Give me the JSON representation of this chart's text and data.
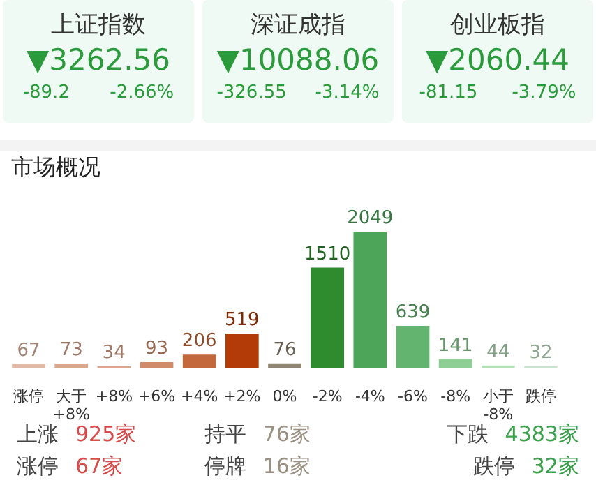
{
  "chart_data": [
    {
      "type": "other",
      "annotations": [
        "上证指数",
        "▼3262.56",
        "-89.2",
        "-2.66%",
        "深证成指",
        "▼10088.06",
        "-326.55",
        "-3.14%",
        "创业板指",
        "▼2060.44",
        "-81.15",
        "-3.79%"
      ]
    },
    {
      "type": "bar",
      "title": "市场概况",
      "categories": [
        "涨停",
        "大于 +8%",
        "+8%",
        "+6%",
        "+4%",
        "+2%",
        "0%",
        "-2%",
        "-4%",
        "-6%",
        "-8%",
        "小于 -8%",
        "跌停"
      ],
      "values": [
        67,
        73,
        34,
        93,
        206,
        519,
        76,
        1510,
        2049,
        639,
        141,
        44,
        32
      ],
      "colors": [
        "#e2b9a4",
        "#dba690",
        "#dba58c",
        "#d08c6a",
        "#c3683c",
        "#b23b08",
        "#8f8674",
        "#2e8b2e",
        "#4da55a",
        "#62b46e",
        "#8dcf95",
        "#b3deb8",
        "#c6e6cb"
      ],
      "data_labels": true,
      "annotations": [
        "上涨",
        "925家",
        "持平",
        "76家",
        "下跌",
        "4383家",
        "涨停",
        "67家",
        "停牌",
        "16家",
        "跌停",
        "32家"
      ]
    }
  ]
}
